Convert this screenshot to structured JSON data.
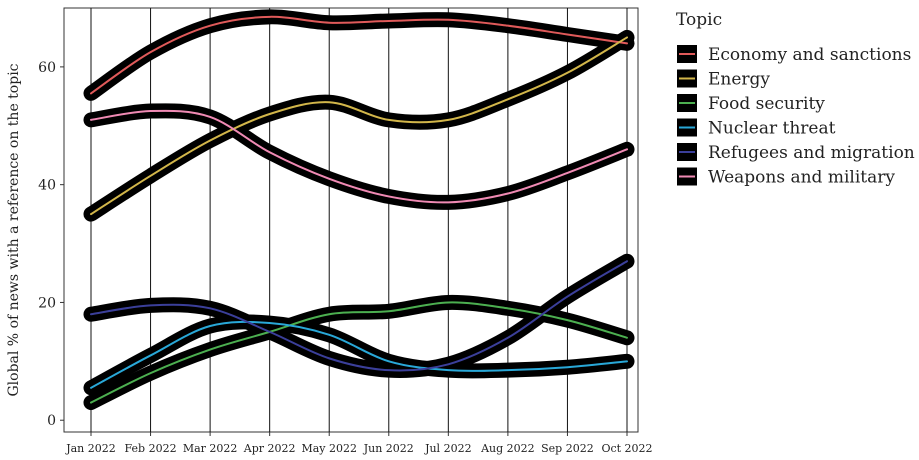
{
  "chart_data": {
    "type": "line",
    "title": "",
    "xlabel": "",
    "ylabel": "Global % of news with a reference on the topic",
    "x": [
      "Jan 2022",
      "Feb 2022",
      "Mar 2022",
      "Apr 2022",
      "May 2022",
      "Jun 2022",
      "Jul 2022",
      "Aug 2022",
      "Sep 2022",
      "Oct 2022"
    ],
    "y_ticks": [
      "0",
      "20",
      "40",
      "60"
    ],
    "ylim": [
      -2,
      70
    ],
    "grid": "vertical lines at each month",
    "legend": {
      "title": "Topic",
      "position": "right"
    },
    "series": [
      {
        "name": "Economy and sanctions",
        "color": "#e05a5a",
        "values": [
          55.5,
          62.5,
          67,
          68.5,
          67.5,
          67.8,
          68,
          67,
          65.5,
          64
        ]
      },
      {
        "name": "Energy",
        "color": "#d2b64a",
        "values": [
          35,
          41.5,
          47.5,
          52,
          54,
          51,
          51,
          54.5,
          59,
          65
        ]
      },
      {
        "name": "Food security",
        "color": "#4caf50",
        "values": [
          3,
          8,
          12,
          15,
          18,
          18.5,
          20,
          19,
          17,
          14
        ]
      },
      {
        "name": "Nuclear threat",
        "color": "#29a8d8",
        "values": [
          5.5,
          11,
          16,
          16.5,
          14.5,
          10,
          8.5,
          8.5,
          9,
          10
        ]
      },
      {
        "name": "Refugees and migration",
        "color": "#3b3f9a",
        "values": [
          18,
          19.5,
          19,
          15,
          10.5,
          8.5,
          9.5,
          14,
          21,
          27
        ]
      },
      {
        "name": "Weapons and military",
        "color": "#f08ab4",
        "values": [
          51,
          52.5,
          51.5,
          45.5,
          41,
          38,
          37,
          38.5,
          42,
          46
        ]
      }
    ]
  }
}
